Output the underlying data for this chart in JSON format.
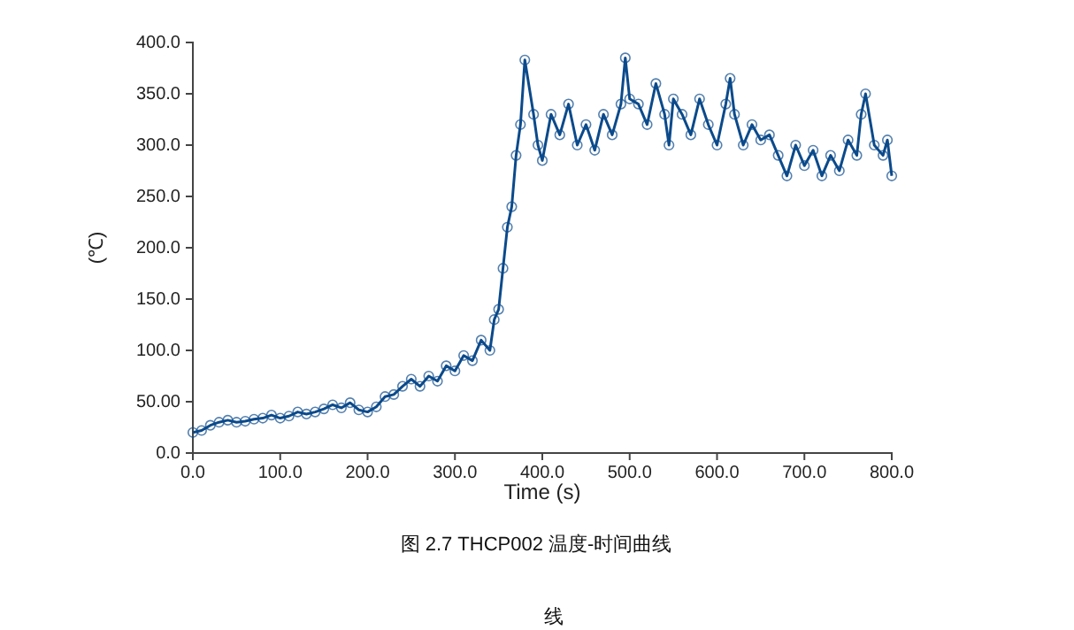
{
  "chart_data": {
    "type": "line",
    "xlabel": "Time (s)",
    "ylabel": "(℃)",
    "annotations": [
      "图 2.7 THCP002 温度-时间曲线",
      "线"
    ],
    "x": [
      0,
      10,
      20,
      30,
      40,
      50,
      60,
      70,
      80,
      90,
      100,
      110,
      120,
      130,
      140,
      150,
      160,
      170,
      180,
      190,
      200,
      210,
      220,
      230,
      240,
      250,
      260,
      270,
      280,
      290,
      300,
      310,
      320,
      330,
      340,
      345,
      350,
      355,
      360,
      365,
      370,
      375,
      380,
      390,
      395,
      400,
      410,
      420,
      430,
      440,
      450,
      460,
      470,
      480,
      490,
      495,
      500,
      510,
      520,
      530,
      540,
      545,
      550,
      560,
      570,
      580,
      590,
      600,
      610,
      615,
      620,
      630,
      640,
      650,
      660,
      670,
      680,
      690,
      700,
      710,
      720,
      730,
      740,
      750,
      760,
      765,
      770,
      780,
      790,
      795,
      800
    ],
    "series": [
      {
        "color": "#0b4a8b",
        "values": [
          20,
          22,
          27,
          30,
          32,
          30,
          31,
          33,
          34,
          37,
          34,
          36,
          40,
          38,
          40,
          43,
          47,
          44,
          49,
          42,
          40,
          45,
          55,
          57,
          65,
          72,
          65,
          75,
          70,
          85,
          80,
          95,
          90,
          110,
          100,
          130,
          140,
          180,
          220,
          240,
          290,
          320,
          383,
          330,
          300,
          285,
          330,
          310,
          340,
          300,
          320,
          295,
          330,
          310,
          340,
          385,
          345,
          340,
          320,
          360,
          330,
          300,
          345,
          330,
          310,
          345,
          320,
          300,
          340,
          365,
          330,
          300,
          320,
          305,
          310,
          290,
          270,
          300,
          280,
          295,
          270,
          290,
          275,
          305,
          290,
          330,
          350,
          300,
          290,
          305,
          270
        ]
      }
    ],
    "xlim": [
      0,
      800
    ],
    "xticks": [
      {
        "value": 0,
        "label": "0.0"
      },
      {
        "value": 100,
        "label": "100.0"
      },
      {
        "value": 200,
        "label": "200.0"
      },
      {
        "value": 300,
        "label": "300.0"
      },
      {
        "value": 400,
        "label": "400.0"
      },
      {
        "value": 500,
        "label": "500.0"
      },
      {
        "value": 600,
        "label": "600.0"
      },
      {
        "value": 700,
        "label": "700.0"
      },
      {
        "value": 800,
        "label": "800.0"
      }
    ],
    "ylim": [
      0,
      400
    ],
    "yticks": [
      {
        "value": 0,
        "label": "0.0"
      },
      {
        "value": 50,
        "label": "50.00"
      },
      {
        "value": 100,
        "label": "100.0"
      },
      {
        "value": 150,
        "label": "150.0"
      },
      {
        "value": 200,
        "label": "200.0"
      },
      {
        "value": 250,
        "label": "250.0"
      },
      {
        "value": 300,
        "label": "300.0"
      },
      {
        "value": 350,
        "label": "350.0"
      },
      {
        "value": 400,
        "label": "400.0"
      }
    ],
    "marker": "circle",
    "line_style": "solid"
  }
}
